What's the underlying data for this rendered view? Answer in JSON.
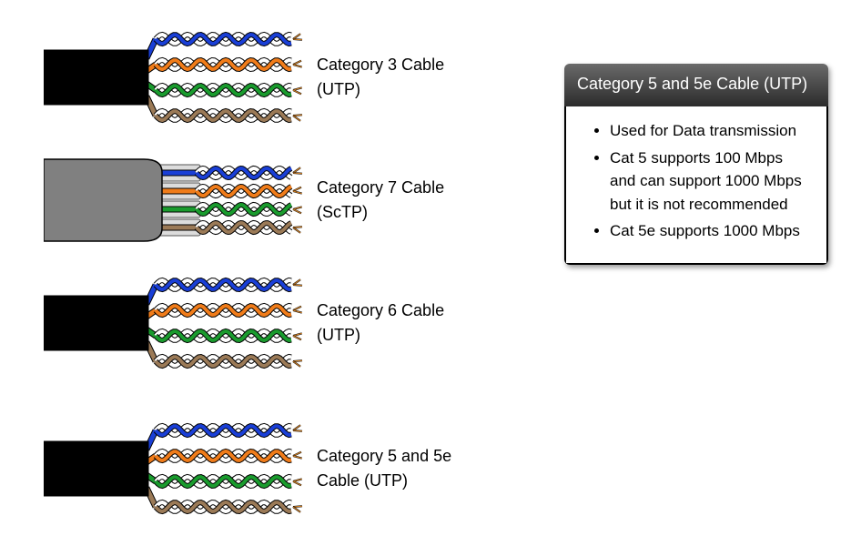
{
  "diagram": {
    "type": "infographic",
    "background_color": "#ffffff",
    "cables": [
      {
        "label": "Category 3 Cable (UTP)",
        "jacket_color": "#000000",
        "shielded": false,
        "pairs": [
          {
            "color": "#1a3fd6",
            "stripe": "#ffffff"
          },
          {
            "color": "#f07c1a",
            "stripe": "#ffffff"
          },
          {
            "color": "#1a9b2e",
            "stripe": "#ffffff"
          },
          {
            "color": "#9b7a57",
            "stripe": "#ffffff"
          }
        ]
      },
      {
        "label": "Category 7 Cable (ScTP)",
        "jacket_color": "#808080",
        "shielded": true,
        "foil_color": "#dcdcdc",
        "pairs": [
          {
            "color": "#1a3fd6",
            "stripe": "#ffffff"
          },
          {
            "color": "#f07c1a",
            "stripe": "#ffffff"
          },
          {
            "color": "#1a9b2e",
            "stripe": "#ffffff"
          },
          {
            "color": "#9b7a57",
            "stripe": "#ffffff"
          }
        ]
      },
      {
        "label": "Category 6 Cable (UTP)",
        "jacket_color": "#000000",
        "shielded": false,
        "pairs": [
          {
            "color": "#1a3fd6",
            "stripe": "#ffffff"
          },
          {
            "color": "#f07c1a",
            "stripe": "#ffffff"
          },
          {
            "color": "#1a9b2e",
            "stripe": "#ffffff"
          },
          {
            "color": "#9b7a57",
            "stripe": "#ffffff"
          }
        ]
      },
      {
        "label": "Category 5 and 5e Cable (UTP)",
        "jacket_color": "#000000",
        "shielded": false,
        "pairs": [
          {
            "color": "#1a3fd6",
            "stripe": "#ffffff"
          },
          {
            "color": "#f07c1a",
            "stripe": "#ffffff"
          },
          {
            "color": "#1a9b2e",
            "stripe": "#ffffff"
          },
          {
            "color": "#9b7a57",
            "stripe": "#ffffff"
          }
        ]
      }
    ],
    "label_fontsize": 18,
    "label_color": "#000000"
  },
  "info_card": {
    "title": "Category 5 and 5e Cable (UTP)",
    "header_gradient_top": "#6a6a6a",
    "header_gradient_bottom": "#2b2b2b",
    "header_text_color": "#ffffff",
    "body_background": "#ffffff",
    "body_border_color": "#000000",
    "bullets": [
      "Used for Data transmission",
      "Cat 5 supports 100 Mbps and can support 1000 Mbps but it is not recommended",
      "Cat 5e supports 1000 Mbps"
    ],
    "bullet_fontsize": 17,
    "bullet_color": "#000000"
  }
}
